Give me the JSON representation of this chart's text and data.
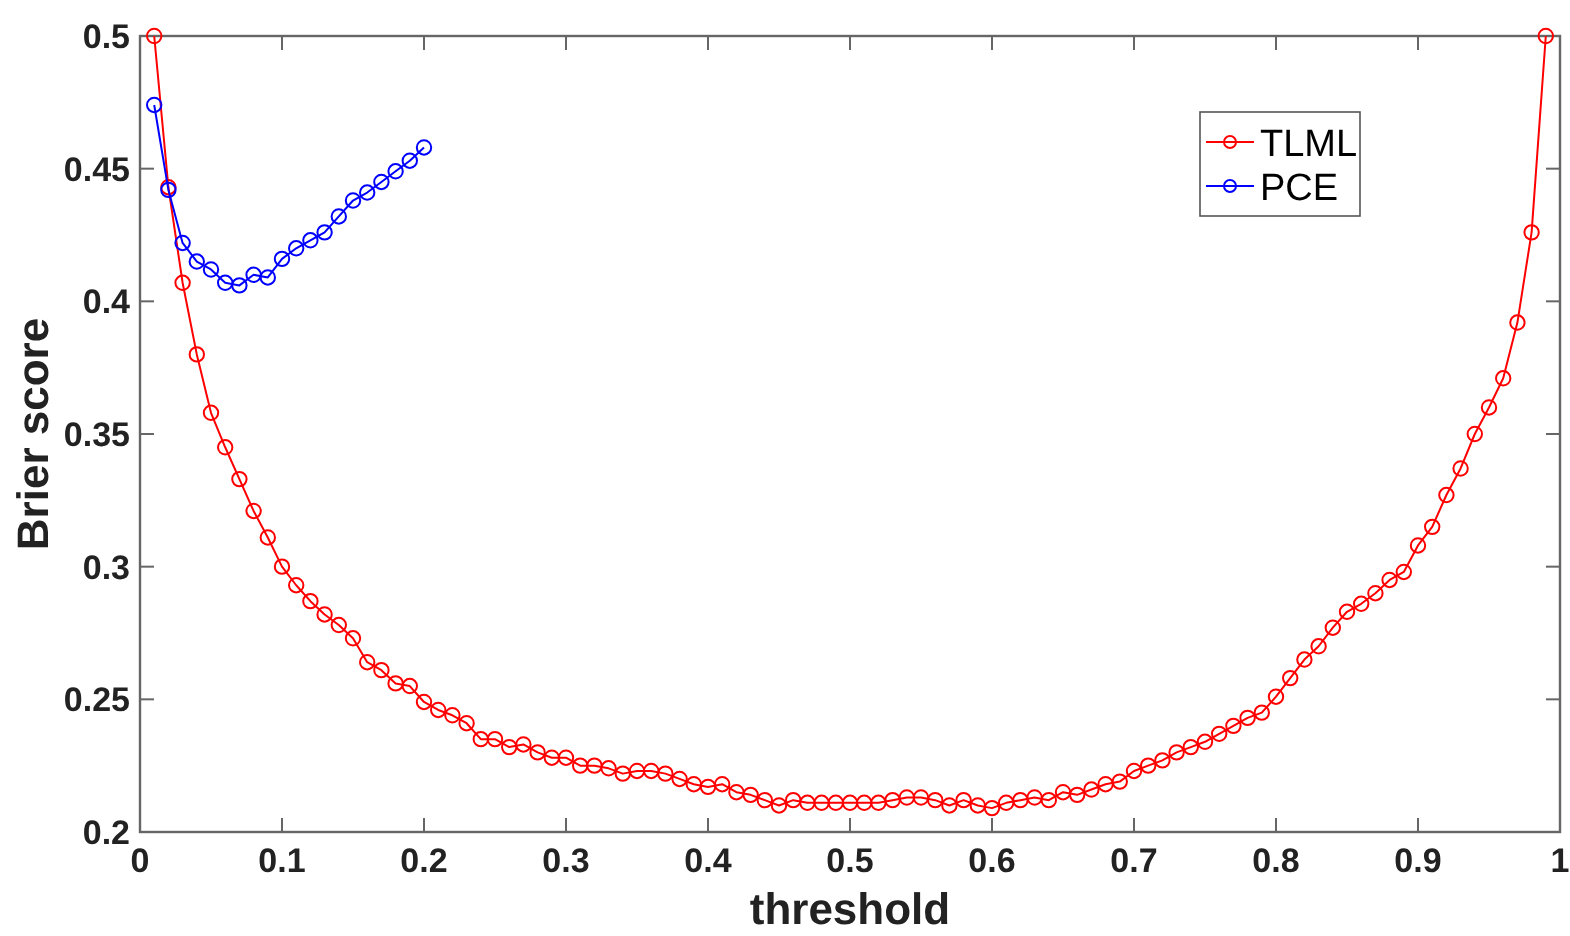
{
  "chart_data": {
    "type": "line",
    "xlabel": "threshold",
    "ylabel": "Brier score",
    "xlim": [
      0,
      1
    ],
    "ylim": [
      0.2,
      0.5
    ],
    "xticks": [
      0,
      0.1,
      0.2,
      0.3,
      0.4,
      0.5,
      0.6,
      0.7,
      0.8,
      0.9,
      1
    ],
    "yticks": [
      0.2,
      0.25,
      0.3,
      0.35,
      0.4,
      0.45,
      0.5
    ],
    "grid": false,
    "legend": "top right",
    "marker": "circle",
    "line_style": "solid",
    "series": [
      {
        "name": "TLML",
        "color": "#ff0000",
        "x": [
          0.01,
          0.02,
          0.03,
          0.04,
          0.05,
          0.06,
          0.07,
          0.08,
          0.09,
          0.1,
          0.11,
          0.12,
          0.13,
          0.14,
          0.15,
          0.16,
          0.17,
          0.18,
          0.19,
          0.2,
          0.21,
          0.22,
          0.23,
          0.24,
          0.25,
          0.26,
          0.27,
          0.28,
          0.29,
          0.3,
          0.31,
          0.32,
          0.33,
          0.34,
          0.35,
          0.36,
          0.37,
          0.38,
          0.39,
          0.4,
          0.41,
          0.42,
          0.43,
          0.44,
          0.45,
          0.46,
          0.47,
          0.48,
          0.49,
          0.5,
          0.51,
          0.52,
          0.53,
          0.54,
          0.55,
          0.56,
          0.57,
          0.58,
          0.59,
          0.6,
          0.61,
          0.62,
          0.63,
          0.64,
          0.65,
          0.66,
          0.67,
          0.68,
          0.69,
          0.7,
          0.71,
          0.72,
          0.73,
          0.74,
          0.75,
          0.76,
          0.77,
          0.78,
          0.79,
          0.8,
          0.81,
          0.82,
          0.83,
          0.84,
          0.85,
          0.86,
          0.87,
          0.88,
          0.89,
          0.9,
          0.91,
          0.92,
          0.93,
          0.94,
          0.95,
          0.96,
          0.97,
          0.98,
          0.99
        ],
        "values": [
          0.5,
          0.443,
          0.407,
          0.38,
          0.358,
          0.345,
          0.333,
          0.321,
          0.311,
          0.3,
          0.293,
          0.287,
          0.282,
          0.278,
          0.273,
          0.264,
          0.261,
          0.256,
          0.255,
          0.249,
          0.246,
          0.244,
          0.241,
          0.235,
          0.235,
          0.232,
          0.233,
          0.23,
          0.228,
          0.228,
          0.225,
          0.225,
          0.224,
          0.222,
          0.223,
          0.223,
          0.222,
          0.22,
          0.218,
          0.217,
          0.218,
          0.215,
          0.214,
          0.212,
          0.21,
          0.212,
          0.211,
          0.211,
          0.211,
          0.211,
          0.211,
          0.211,
          0.212,
          0.213,
          0.213,
          0.212,
          0.21,
          0.212,
          0.21,
          0.209,
          0.211,
          0.212,
          0.213,
          0.212,
          0.215,
          0.214,
          0.216,
          0.218,
          0.219,
          0.223,
          0.225,
          0.227,
          0.23,
          0.232,
          0.234,
          0.237,
          0.24,
          0.243,
          0.245,
          0.251,
          0.258,
          0.265,
          0.27,
          0.277,
          0.283,
          0.286,
          0.29,
          0.295,
          0.298,
          0.308,
          0.315,
          0.327,
          0.337,
          0.35,
          0.36,
          0.371,
          0.392,
          0.426,
          0.5
        ]
      },
      {
        "name": "PCE",
        "color": "#0000ff",
        "x": [
          0.01,
          0.02,
          0.03,
          0.04,
          0.05,
          0.06,
          0.07,
          0.08,
          0.09,
          0.1,
          0.11,
          0.12,
          0.13,
          0.14,
          0.15,
          0.16,
          0.17,
          0.18,
          0.19,
          0.2
        ],
        "values": [
          0.474,
          0.442,
          0.422,
          0.415,
          0.412,
          0.407,
          0.406,
          0.41,
          0.409,
          0.416,
          0.42,
          0.423,
          0.426,
          0.432,
          0.438,
          0.441,
          0.445,
          0.449,
          0.453,
          0.458
        ]
      }
    ]
  }
}
